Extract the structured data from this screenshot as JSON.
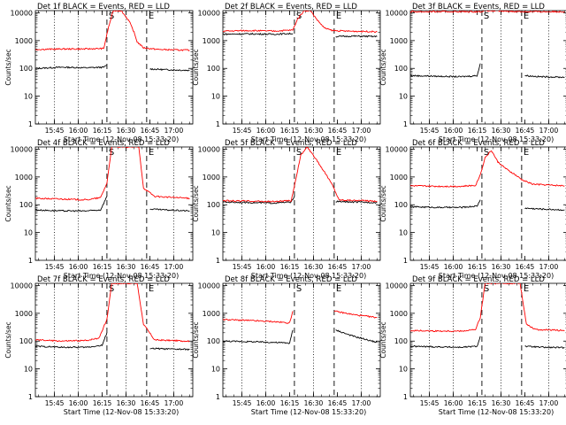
{
  "figure": {
    "detector_title_suffix": "BLACK = Events, RED = LLD",
    "xlabel": "Start Time (12-Nov-08 15:33:20)",
    "ylabel": "Counts/sec",
    "x_tick_labels": [
      "15:45",
      "16:00",
      "16:15",
      "16:30",
      "16:45",
      "17:00"
    ],
    "y_tick_labels": [
      "1",
      "10",
      "100",
      "1000",
      "10000"
    ],
    "colors": {
      "events": "#000000",
      "lld": "#ff0000",
      "axes": "#000000"
    }
  },
  "chart_data": [
    {
      "type": "line",
      "title": "Det 1f BLACK = Events, RED = LLD",
      "xlabel": "Start Time (12-Nov-08 15:33:20)",
      "ylabel": "Counts/sec",
      "x_ticks": [
        "15:45",
        "16:00",
        "16:15",
        "16:30",
        "16:45",
        "17:00"
      ],
      "ylim": [
        1,
        12000
      ],
      "y_scale": "log",
      "markers": {
        "dotted": [
          "15:45",
          "16:00",
          "16:30",
          "17:00"
        ],
        "dashed": [
          "16:18",
          "16:43"
        ]
      },
      "marker_labels": [
        "S",
        "E"
      ],
      "series": [
        {
          "name": "Events",
          "segments": [
            {
              "x": [
                "15:33",
                "15:50",
                "16:05",
                "16:16",
                "16:18"
              ],
              "y": [
                100,
                110,
                105,
                110,
                130
              ]
            },
            {
              "x": [
                "16:45",
                "16:55",
                "17:10"
              ],
              "y": [
                95,
                90,
                85
              ]
            }
          ]
        },
        {
          "name": "LLD",
          "x": [
            "15:33",
            "15:50",
            "16:05",
            "16:16",
            "16:19",
            "16:22",
            "16:27",
            "16:32",
            "16:35",
            "16:37",
            "16:41",
            "16:50",
            "17:10"
          ],
          "y": [
            480,
            500,
            500,
            520,
            3000,
            12000,
            12000,
            5000,
            2000,
            900,
            550,
            480,
            450
          ]
        }
      ]
    },
    {
      "type": "line",
      "title": "Det 2f BLACK = Events, RED = LLD",
      "xlabel": "Start Time (12-Nov-08 15:33:20)",
      "ylabel": "Counts/sec",
      "x_ticks": [
        "15:45",
        "16:00",
        "16:15",
        "16:30",
        "16:45",
        "17:00"
      ],
      "ylim": [
        1,
        12000
      ],
      "y_scale": "log",
      "markers": {
        "dotted": [
          "15:45",
          "16:00",
          "16:30",
          "17:00"
        ],
        "dashed": [
          "16:18",
          "16:43"
        ]
      },
      "marker_labels": [
        "S",
        "E"
      ],
      "series": [
        {
          "name": "Events",
          "segments": [
            {
              "x": [
                "15:33",
                "15:50",
                "16:05",
                "16:17"
              ],
              "y": [
                1700,
                1750,
                1700,
                1800
              ]
            },
            {
              "x": [
                "16:44",
                "16:55",
                "17:10"
              ],
              "y": [
                1400,
                1450,
                1400
              ]
            }
          ]
        },
        {
          "name": "LLD",
          "x": [
            "15:33",
            "15:50",
            "16:05",
            "16:17",
            "16:20",
            "16:24",
            "16:28",
            "16:33",
            "16:37",
            "16:42",
            "16:50",
            "17:10"
          ],
          "y": [
            2200,
            2300,
            2200,
            2400,
            6000,
            12000,
            12000,
            5000,
            2800,
            2300,
            2200,
            2100
          ]
        }
      ]
    },
    {
      "type": "line",
      "title": "Det 3f BLACK = Events, RED = LLD",
      "xlabel": "Start Time (12-Nov-08 15:33:20)",
      "ylabel": "Counts/sec",
      "x_ticks": [
        "15:45",
        "16:00",
        "16:15",
        "16:30",
        "16:45",
        "17:00"
      ],
      "ylim": [
        1,
        12000
      ],
      "y_scale": "log",
      "markers": {
        "dotted": [
          "15:45",
          "16:00",
          "16:30",
          "17:00"
        ],
        "dashed": [
          "16:18",
          "16:43"
        ]
      },
      "marker_labels": [
        "S",
        "E"
      ],
      "series": [
        {
          "name": "Events",
          "segments": [
            {
              "x": [
                "15:33",
                "15:50",
                "16:05",
                "16:15",
                "16:17"
              ],
              "y": [
                55,
                52,
                50,
                55,
                150
              ]
            },
            {
              "x": [
                "16:45",
                "16:55",
                "17:10"
              ],
              "y": [
                55,
                50,
                48
              ]
            }
          ]
        },
        {
          "name": "LLD",
          "x": [
            "15:33",
            "15:50",
            "16:05",
            "16:17",
            "16:20",
            "16:44",
            "16:55",
            "17:10"
          ],
          "y": [
            11000,
            11000,
            11000,
            11000,
            12000,
            11000,
            11000,
            11000
          ]
        }
      ]
    },
    {
      "type": "line",
      "title": "Det 4f BLACK = Events, RED = LLD",
      "xlabel": "Start Time (12-Nov-08 15:33:20)",
      "ylabel": "Counts/sec",
      "x_ticks": [
        "15:45",
        "16:00",
        "16:15",
        "16:30",
        "16:45",
        "17:00"
      ],
      "ylim": [
        1,
        12000
      ],
      "y_scale": "log",
      "markers": {
        "dotted": [
          "15:45",
          "16:00",
          "16:30",
          "17:00"
        ],
        "dashed": [
          "16:18",
          "16:43"
        ]
      },
      "marker_labels": [
        "S",
        "E"
      ],
      "series": [
        {
          "name": "Events",
          "segments": [
            {
              "x": [
                "15:33",
                "15:50",
                "16:05",
                "16:14",
                "16:18"
              ],
              "y": [
                65,
                60,
                60,
                65,
                200
              ]
            },
            {
              "x": [
                "16:45",
                "16:55",
                "17:10"
              ],
              "y": [
                70,
                65,
                60
              ]
            }
          ]
        },
        {
          "name": "LLD",
          "x": [
            "15:33",
            "15:50",
            "16:05",
            "16:14",
            "16:18",
            "16:21",
            "16:38",
            "16:41",
            "16:48",
            "17:10"
          ],
          "y": [
            170,
            160,
            150,
            180,
            600,
            12000,
            12000,
            400,
            200,
            170
          ]
        }
      ]
    },
    {
      "type": "line",
      "title": "Det 5f BLACK = Events, RED = LLD",
      "xlabel": "Start Time (12-Nov-08 15:33:20)",
      "ylabel": "Counts/sec",
      "x_ticks": [
        "15:45",
        "16:00",
        "16:15",
        "16:30",
        "16:45",
        "17:00"
      ],
      "ylim": [
        1,
        12000
      ],
      "y_scale": "log",
      "markers": {
        "dotted": [
          "15:45",
          "16:00",
          "16:30",
          "17:00"
        ],
        "dashed": [
          "16:18",
          "16:43"
        ]
      },
      "marker_labels": [
        "S",
        "E"
      ],
      "series": [
        {
          "name": "Events",
          "segments": [
            {
              "x": [
                "15:33",
                "15:50",
                "16:05",
                "16:16",
                "16:18"
              ],
              "y": [
                125,
                120,
                115,
                125,
                200
              ]
            },
            {
              "x": [
                "16:44",
                "16:55",
                "17:10"
              ],
              "y": [
                130,
                125,
                120
              ]
            }
          ]
        },
        {
          "name": "LLD",
          "x": [
            "15:33",
            "15:50",
            "16:05",
            "16:16",
            "16:19",
            "16:22",
            "16:26",
            "16:32",
            "16:38",
            "16:42",
            "16:46",
            "17:10"
          ],
          "y": [
            140,
            135,
            130,
            140,
            900,
            6000,
            12000,
            4000,
            1200,
            500,
            150,
            135
          ]
        }
      ]
    },
    {
      "type": "line",
      "title": "Det 6f BLACK = Events, RED = LLD",
      "xlabel": "Start Time (12-Nov-08 15:33:20)",
      "ylabel": "Counts/sec",
      "x_ticks": [
        "15:45",
        "16:00",
        "16:15",
        "16:30",
        "16:45",
        "17:00"
      ],
      "ylim": [
        1,
        12000
      ],
      "y_scale": "log",
      "markers": {
        "dotted": [
          "15:45",
          "16:00",
          "16:30",
          "17:00"
        ],
        "dashed": [
          "16:18",
          "16:43"
        ]
      },
      "marker_labels": [
        "S",
        "E"
      ],
      "series": [
        {
          "name": "Events",
          "segments": [
            {
              "x": [
                "15:33",
                "15:50",
                "16:05",
                "16:15",
                "16:17"
              ],
              "y": [
                85,
                80,
                80,
                90,
                150
              ]
            },
            {
              "x": [
                "16:45",
                "16:55",
                "17:10"
              ],
              "y": [
                75,
                70,
                65
              ]
            }
          ]
        },
        {
          "name": "LLD",
          "x": [
            "15:33",
            "15:50",
            "16:05",
            "16:14",
            "16:17",
            "16:20",
            "16:24",
            "16:28",
            "16:34",
            "16:38",
            "16:43",
            "16:50",
            "17:10"
          ],
          "y": [
            480,
            460,
            460,
            500,
            1200,
            5000,
            9000,
            3500,
            1800,
            1300,
            800,
            550,
            480
          ]
        }
      ]
    },
    {
      "type": "line",
      "title": "Det 7f BLACK = Events, RED = LLD",
      "xlabel": "Start Time (12-Nov-08 15:33:20)",
      "ylabel": "Counts/sec",
      "x_ticks": [
        "15:45",
        "16:00",
        "16:15",
        "16:30",
        "16:45",
        "17:00"
      ],
      "ylim": [
        1,
        12000
      ],
      "y_scale": "log",
      "markers": {
        "dotted": [
          "15:45",
          "16:00",
          "16:30",
          "17:00"
        ],
        "dashed": [
          "16:18",
          "16:43"
        ]
      },
      "marker_labels": [
        "S",
        "E"
      ],
      "series": [
        {
          "name": "Events",
          "segments": [
            {
              "x": [
                "15:33",
                "15:50",
                "16:05",
                "16:15",
                "16:18"
              ],
              "y": [
                65,
                60,
                60,
                70,
                200
              ]
            },
            {
              "x": [
                "16:45",
                "16:55",
                "17:10"
              ],
              "y": [
                55,
                52,
                50
              ]
            }
          ]
        },
        {
          "name": "LLD",
          "x": [
            "15:33",
            "15:50",
            "16:05",
            "16:13",
            "16:18",
            "16:21",
            "16:37",
            "16:41",
            "16:48",
            "17:10"
          ],
          "y": [
            110,
            100,
            105,
            130,
            600,
            12000,
            12000,
            400,
            110,
            100
          ]
        }
      ]
    },
    {
      "type": "line",
      "title": "Det 8f BLACK = Events, RED = LLD",
      "xlabel": "Start Time (12-Nov-08 15:33:20)",
      "ylabel": "Counts/sec",
      "x_ticks": [
        "15:45",
        "16:00",
        "16:15",
        "16:30",
        "16:45",
        "17:00"
      ],
      "ylim": [
        1,
        12000
      ],
      "y_scale": "log",
      "markers": {
        "dotted": [
          "15:45",
          "16:00",
          "16:30",
          "17:00"
        ],
        "dashed": [
          "16:18",
          "16:43"
        ]
      },
      "marker_labels": [
        "S",
        "E"
      ],
      "series": [
        {
          "name": "Events",
          "segments": [
            {
              "x": [
                "15:33",
                "15:50",
                "16:05",
                "16:15",
                "16:17"
              ],
              "y": [
                100,
                95,
                90,
                85,
                250
              ]
            },
            {
              "x": [
                "16:44",
                "16:55",
                "17:10"
              ],
              "y": [
                250,
                150,
                90
              ]
            }
          ]
        },
        {
          "name": "LLD",
          "segments": [
            {
              "x": [
                "15:33",
                "15:50",
                "16:05",
                "16:15",
                "16:17"
              ],
              "y": [
                600,
                550,
                500,
                450,
                1200
              ]
            },
            {
              "x": [
                "16:43",
                "16:55",
                "17:10"
              ],
              "y": [
                1200,
                900,
                700
              ]
            }
          ]
        }
      ]
    },
    {
      "type": "line",
      "title": "Det 9f BLACK = Events, RED = LLD",
      "xlabel": "Start Time (12-Nov-08 15:33:20)",
      "ylabel": "Counts/sec",
      "x_ticks": [
        "15:45",
        "16:00",
        "16:15",
        "16:30",
        "16:45",
        "17:00"
      ],
      "ylim": [
        1,
        12000
      ],
      "y_scale": "log",
      "markers": {
        "dotted": [
          "15:45",
          "16:00",
          "16:30",
          "17:00"
        ],
        "dashed": [
          "16:18",
          "16:43"
        ]
      },
      "marker_labels": [
        "S",
        "E"
      ],
      "series": [
        {
          "name": "Events",
          "segments": [
            {
              "x": [
                "15:33",
                "15:50",
                "16:05",
                "16:15",
                "16:17"
              ],
              "y": [
                65,
                62,
                60,
                65,
                150
              ]
            },
            {
              "x": [
                "16:45",
                "16:55",
                "17:10"
              ],
              "y": [
                65,
                60,
                58
              ]
            }
          ]
        },
        {
          "name": "LLD",
          "x": [
            "15:33",
            "15:50",
            "16:05",
            "16:14",
            "16:17",
            "16:20",
            "16:42",
            "16:46",
            "16:52",
            "17:10"
          ],
          "y": [
            240,
            230,
            230,
            260,
            700,
            12000,
            12000,
            400,
            260,
            240
          ]
        }
      ]
    }
  ]
}
